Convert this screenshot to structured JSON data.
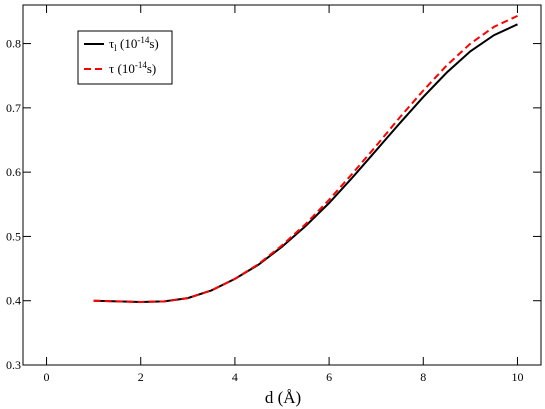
{
  "chart_data": {
    "type": "line",
    "title": "",
    "xlabel": "d (Å)",
    "ylabel": "",
    "xlim": [
      -0.5,
      10.5
    ],
    "ylim": [
      0.3,
      0.86
    ],
    "x_ticks": [
      0,
      2,
      4,
      6,
      8,
      10
    ],
    "y_ticks": [
      0.3,
      0.4,
      0.5,
      0.6,
      0.7,
      0.8
    ],
    "grid": false,
    "legend_position": "top-left",
    "series": [
      {
        "name": "τ_l (10^-14 s)",
        "legend": {
          "symbol": "τ",
          "subscript": "l",
          "open": " (10",
          "exponent": "-14",
          "close": "s)"
        },
        "color": "#000000",
        "dash": "solid",
        "x": [
          1.0,
          1.5,
          2.0,
          2.5,
          3.0,
          3.5,
          4.0,
          4.5,
          5.0,
          5.5,
          6.0,
          6.5,
          7.0,
          7.5,
          8.0,
          8.5,
          9.0,
          9.5,
          10.0
        ],
        "y": [
          0.4,
          0.399,
          0.398,
          0.399,
          0.404,
          0.416,
          0.434,
          0.456,
          0.484,
          0.516,
          0.552,
          0.592,
          0.634,
          0.676,
          0.717,
          0.755,
          0.788,
          0.813,
          0.83
        ]
      },
      {
        "name": "τ (10^-14 s)",
        "legend": {
          "symbol": "τ",
          "subscript": "",
          "open": " (10",
          "exponent": "-14",
          "close": "s)"
        },
        "color": "#ff0000",
        "dash": "dashed",
        "x": [
          1.0,
          1.5,
          2.0,
          2.5,
          3.0,
          3.5,
          4.0,
          4.5,
          5.0,
          5.5,
          6.0,
          6.5,
          7.0,
          7.5,
          8.0,
          8.5,
          9.0,
          9.5,
          10.0
        ],
        "y": [
          0.4,
          0.399,
          0.398,
          0.399,
          0.404,
          0.416,
          0.434,
          0.457,
          0.486,
          0.519,
          0.557,
          0.598,
          0.641,
          0.685,
          0.727,
          0.766,
          0.8,
          0.826,
          0.843
        ]
      }
    ]
  }
}
